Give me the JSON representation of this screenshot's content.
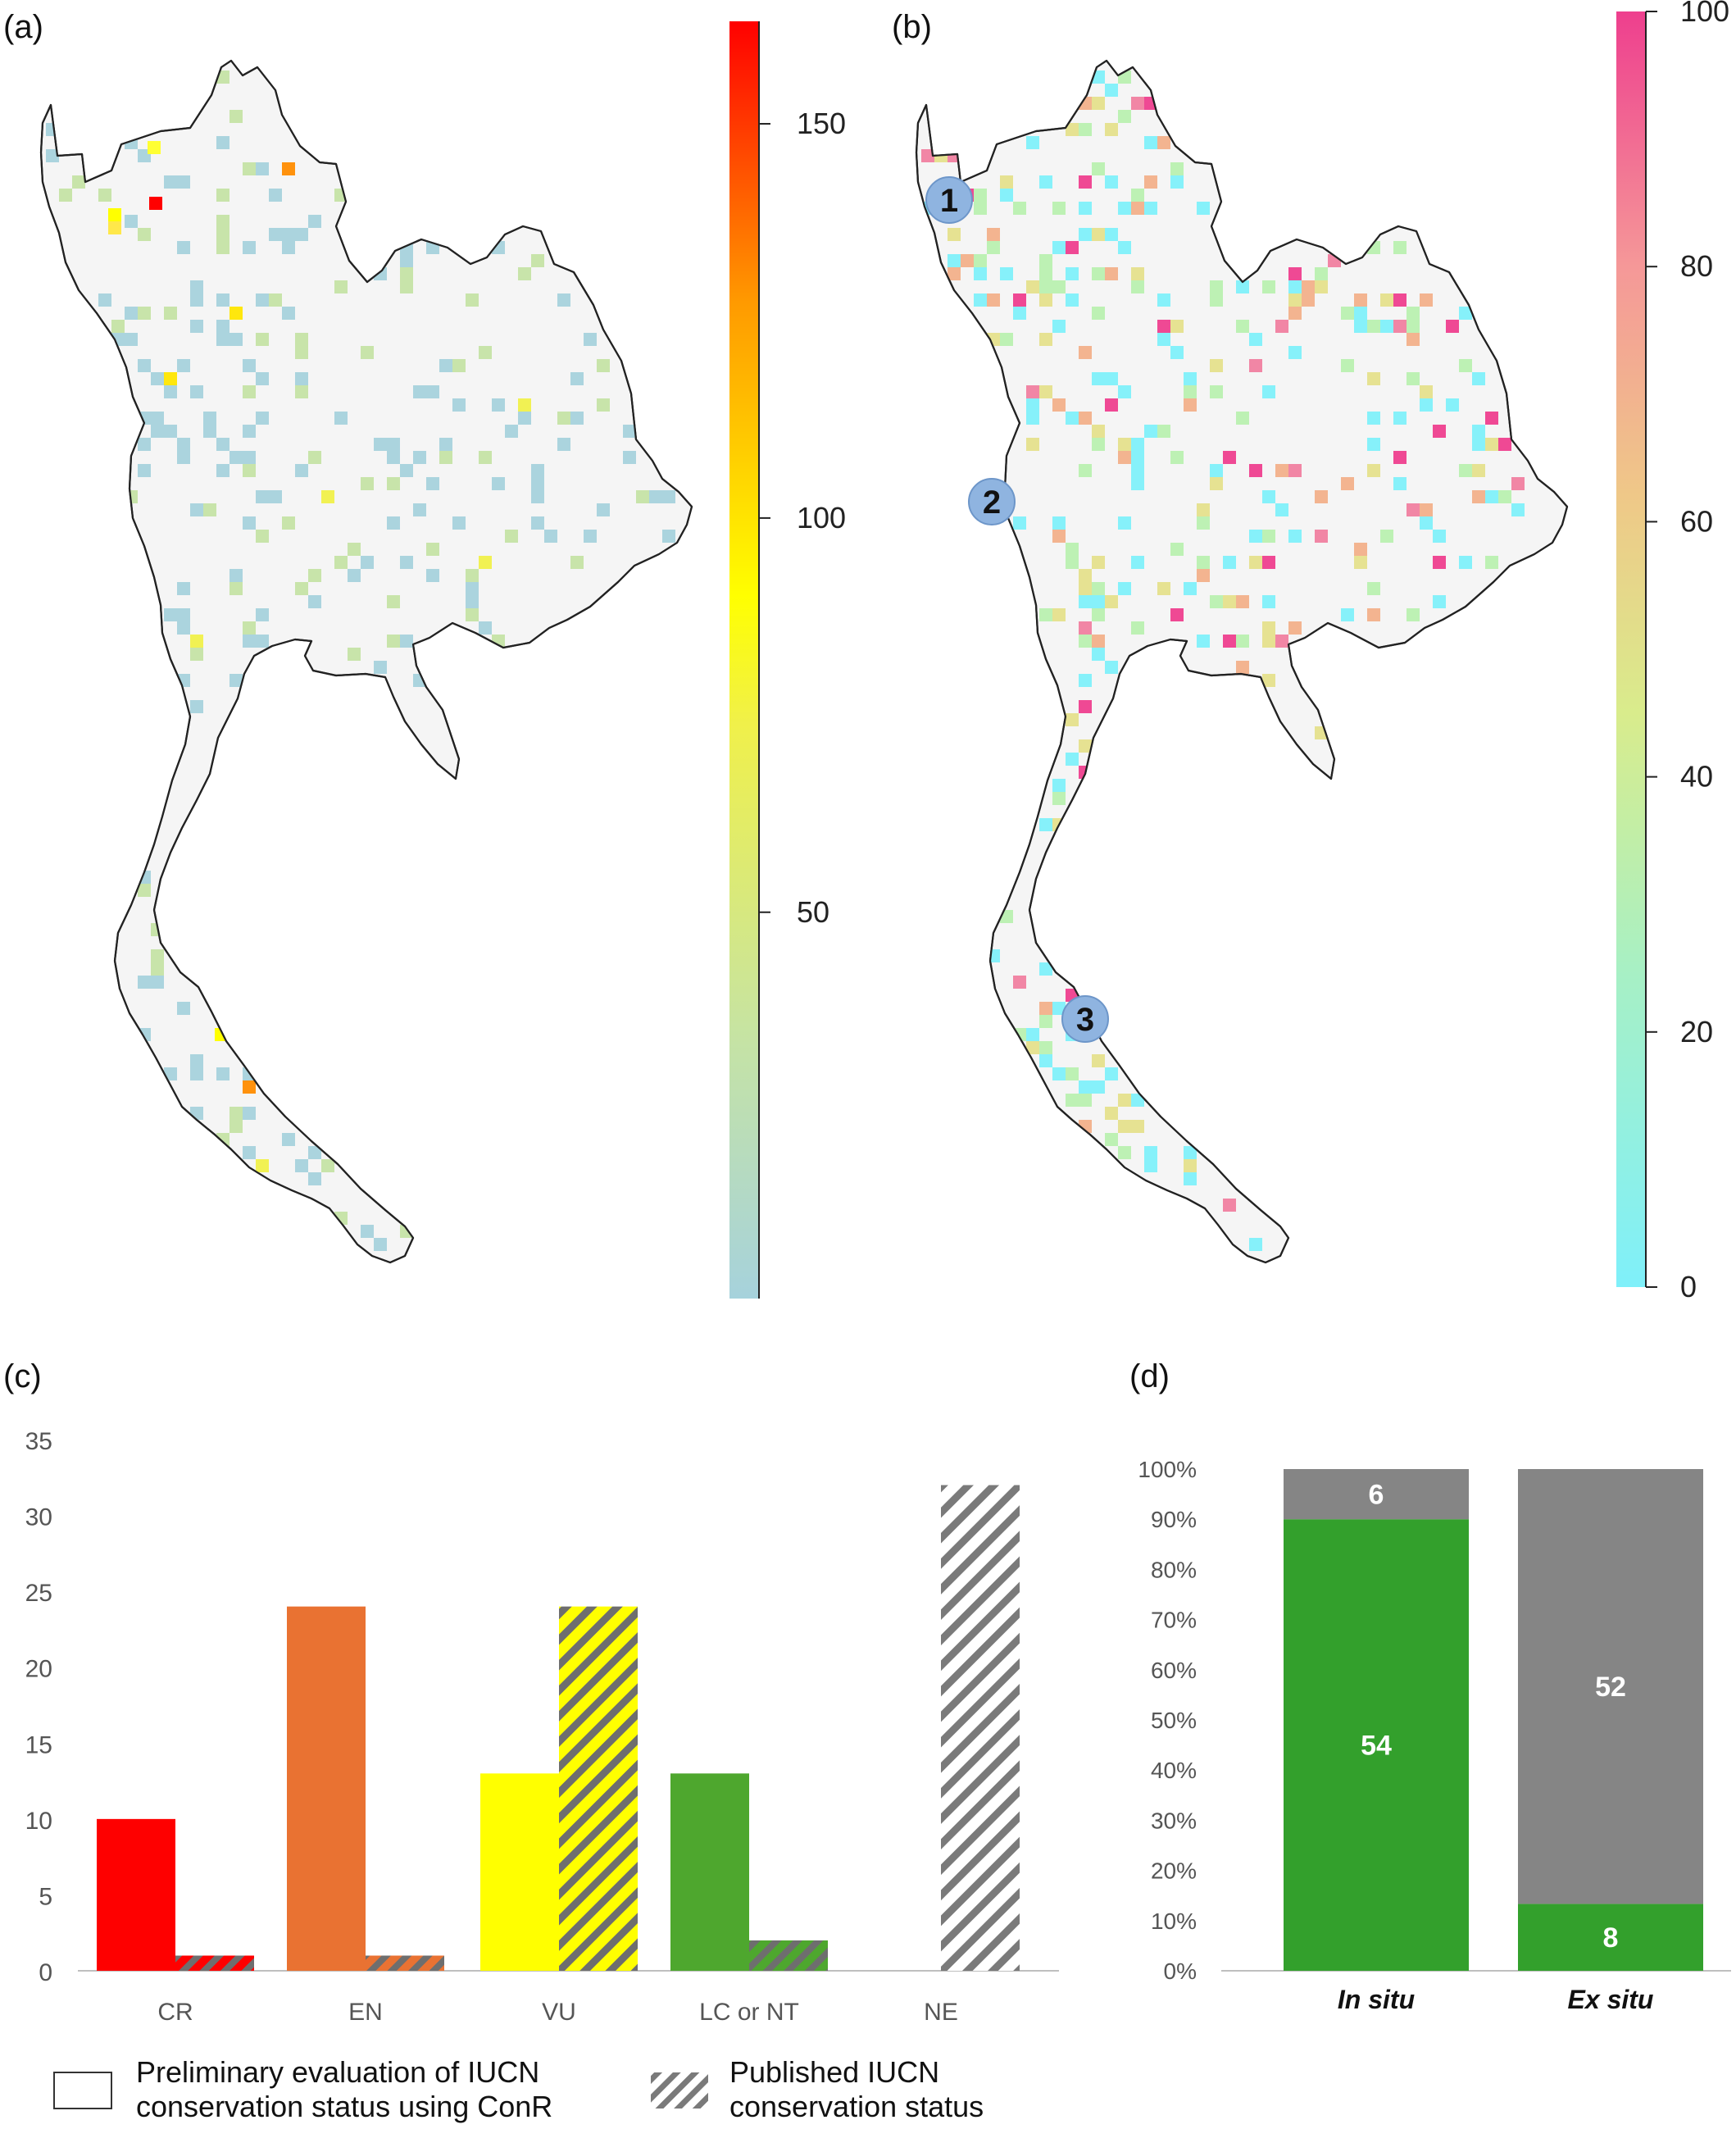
{
  "panels": {
    "a": "(a)",
    "b": "(b)",
    "c": "(c)",
    "d": "(d)"
  },
  "map_a": {
    "colorbar_ticks": [
      "50",
      "100",
      "150"
    ],
    "colorbar_tick_values": [
      50,
      100,
      150
    ],
    "colorbar_range": [
      1,
      163
    ],
    "colors": [
      "#a6d2dc",
      "#c5e3a5",
      "#f0f04a",
      "#ffe600",
      "#ff8c00",
      "#ff0000"
    ]
  },
  "map_b": {
    "colorbar_ticks": [
      "0",
      "20",
      "40",
      "60",
      "80",
      "100"
    ],
    "colorbar_tick_values": [
      0,
      20,
      40,
      60,
      80,
      100
    ],
    "colorbar_range": [
      0,
      100
    ],
    "colors": [
      "#7ff0fa",
      "#b9f0b0",
      "#e5e08c",
      "#f2b08a",
      "#f080a0",
      "#ee3f8e"
    ],
    "markers": [
      "1",
      "2",
      "3"
    ]
  },
  "chart_data": [
    {
      "type": "bar",
      "panel": "c",
      "categories": [
        "CR",
        "EN",
        "VU",
        "LC or NT",
        "NE"
      ],
      "series": [
        {
          "name": "Preliminary evaluation of IUCN conservation status using ConR",
          "values": [
            10,
            24,
            13,
            13,
            0
          ]
        },
        {
          "name": "Published IUCN conservation status",
          "values": [
            1,
            1,
            24,
            2,
            32
          ]
        }
      ],
      "category_colors": [
        "#fe0000",
        "#e97232",
        "#ffff00",
        "#4ea72e",
        "#ffffff"
      ],
      "ylim": [
        0,
        35
      ],
      "yticks": [
        0,
        5,
        10,
        15,
        20,
        25,
        30,
        35
      ],
      "ytick_labels": [
        "0",
        "5",
        "10",
        "15",
        "20",
        "25",
        "30",
        "35"
      ],
      "legend_lines": [
        [
          "Preliminary evaluation of IUCN",
          "conservation status using ConR"
        ],
        [
          "Published IUCN",
          "conservation status"
        ]
      ],
      "legend_position": "bottom"
    },
    {
      "type": "bar",
      "panel": "d",
      "stacked": true,
      "percent": true,
      "categories": [
        "In situ",
        "Ex situ"
      ],
      "series": [
        {
          "name": "",
          "color": "#33a02c",
          "values": [
            54,
            8
          ]
        },
        {
          "name": "",
          "color": "#858585",
          "values": [
            6,
            52
          ]
        }
      ],
      "ylim": [
        0,
        100
      ],
      "ytick_labels": [
        "0%",
        "10%",
        "20%",
        "30%",
        "40%",
        "50%",
        "60%",
        "70%",
        "80%",
        "90%",
        "100%"
      ]
    }
  ]
}
